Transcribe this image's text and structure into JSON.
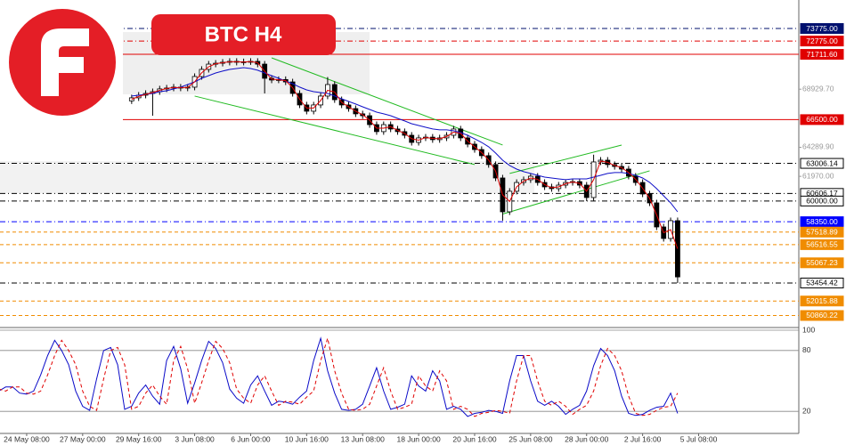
{
  "chart_data": {
    "type": "candlestick",
    "title": "BTC H4",
    "categories": [
      null,
      null,
      null,
      null,
      "24 May 08:00",
      null,
      null,
      null,
      null,
      null,
      null,
      null,
      "27 May 00:00",
      null,
      null,
      null,
      null,
      null,
      null,
      null,
      "29 May 16:00",
      null,
      null,
      null,
      null,
      null,
      null,
      null,
      "3 Jun 08:00",
      null,
      null,
      null,
      null,
      null,
      null,
      null,
      "6 Jun 00:00",
      null,
      null,
      null,
      null,
      null,
      null,
      null,
      "10 Jun 16:00",
      null,
      null,
      null,
      null,
      null,
      null,
      null,
      "13 Jun 08:00",
      null,
      null,
      null,
      null,
      null,
      null,
      null,
      "18 Jun 00:00",
      null,
      null,
      null,
      null,
      null,
      null,
      null,
      "20 Jun 16:00",
      null,
      null,
      null,
      null,
      null,
      null,
      null,
      "25 Jun 08:00",
      null,
      null,
      null,
      null,
      null,
      null,
      null,
      "28 Jun 00:00",
      null,
      null,
      null,
      null,
      null,
      null,
      null,
      "2 Jul 16:00",
      null,
      null,
      null,
      null,
      null,
      null,
      null,
      "5 Jul 08:00"
    ],
    "open": [
      null,
      null,
      null,
      null,
      null,
      null,
      null,
      null,
      null,
      null,
      null,
      null,
      null,
      null,
      null,
      null,
      null,
      null,
      null,
      68000,
      68240,
      68450,
      68590,
      68730,
      68950,
      69020,
      69090,
      69020,
      69090,
      69940,
      70510,
      70930,
      71000,
      71080,
      71150,
      71080,
      71120,
      71150,
      70930,
      69800,
      69660,
      69700,
      69510,
      68590,
      67670,
      67170,
      67670,
      68380,
      69300,
      68090,
      67670,
      67380,
      66960,
      66810,
      66100,
      65540,
      66100,
      65750,
      65540,
      65250,
      64680,
      65040,
      65100,
      64900,
      65040,
      65250,
      65750,
      65040,
      64540,
      64110,
      63620,
      62910,
      61840,
      59140,
      60780,
      61480,
      61700,
      61980,
      61480,
      61130,
      60990,
      61270,
      61480,
      61550,
      61270,
      60280,
      63120,
      63260,
      62910,
      62760,
      62550,
      61980,
      61480,
      60560,
      59850,
      57930,
      57010,
      58430,
      null,
      null,
      null
    ],
    "high": [
      null,
      null,
      null,
      null,
      null,
      null,
      null,
      null,
      null,
      null,
      null,
      null,
      null,
      null,
      null,
      null,
      null,
      null,
      null,
      68490,
      68700,
      68840,
      68980,
      69200,
      69270,
      69340,
      69340,
      69340,
      70190,
      70760,
      71180,
      71250,
      71330,
      71400,
      71400,
      71370,
      71400,
      71400,
      71180,
      70050,
      69950,
      69950,
      69760,
      68840,
      67920,
      67920,
      68630,
      69900,
      69550,
      68340,
      67920,
      67630,
      67210,
      67060,
      66350,
      66350,
      66350,
      66000,
      65790,
      65500,
      65290,
      65350,
      65350,
      65290,
      65500,
      66000,
      66000,
      65290,
      64790,
      64360,
      63870,
      63160,
      62090,
      61030,
      61730,
      61950,
      62230,
      62230,
      61730,
      61380,
      61520,
      61730,
      61800,
      61800,
      61520,
      63700,
      63510,
      63510,
      63160,
      63010,
      62800,
      62230,
      61730,
      60810,
      60100,
      58180,
      58680,
      58680,
      null,
      null,
      null
    ],
    "low": [
      null,
      null,
      null,
      null,
      null,
      null,
      null,
      null,
      null,
      null,
      null,
      null,
      null,
      null,
      null,
      null,
      null,
      null,
      null,
      67750,
      67990,
      68200,
      66810,
      68480,
      68700,
      68770,
      68770,
      68770,
      68840,
      69690,
      70260,
      70680,
      70750,
      70830,
      70830,
      70830,
      70870,
      70680,
      68590,
      69410,
      69410,
      69260,
      68340,
      67420,
      66920,
      66920,
      67420,
      68130,
      67840,
      67420,
      67130,
      66710,
      66560,
      65850,
      65290,
      65290,
      65500,
      65290,
      65000,
      64430,
      64430,
      64790,
      64650,
      64650,
      64790,
      65000,
      64790,
      64290,
      63860,
      63370,
      62660,
      61590,
      58430,
      58890,
      60530,
      61230,
      61450,
      61230,
      60880,
      60740,
      60740,
      61020,
      61230,
      61020,
      59990,
      60030,
      62870,
      62660,
      62510,
      62300,
      61730,
      61230,
      60310,
      59600,
      57680,
      56760,
      56760,
      53450,
      null,
      null,
      null
    ],
    "close": [
      null,
      null,
      null,
      null,
      null,
      null,
      null,
      null,
      null,
      null,
      null,
      null,
      null,
      null,
      null,
      null,
      null,
      null,
      null,
      68240,
      68450,
      68590,
      68730,
      68950,
      69020,
      69090,
      69020,
      69090,
      69940,
      70510,
      70930,
      71000,
      71080,
      71150,
      71080,
      71120,
      71150,
      70930,
      69800,
      69660,
      69700,
      69510,
      68590,
      67670,
      67170,
      67670,
      68380,
      69300,
      68090,
      67670,
      67380,
      66960,
      66810,
      66100,
      65540,
      66100,
      65750,
      65540,
      65250,
      64680,
      65040,
      65100,
      64900,
      65040,
      65250,
      65750,
      65040,
      64540,
      64110,
      63620,
      62910,
      61840,
      59140,
      60780,
      61480,
      61700,
      61980,
      61480,
      61130,
      60990,
      61270,
      61480,
      61550,
      61270,
      60280,
      63120,
      63260,
      62910,
      62760,
      62550,
      61980,
      61480,
      60560,
      59850,
      57930,
      57010,
      58430,
      53940,
      null,
      null,
      null
    ],
    "ma": [
      {
        "color": "#1010c8",
        "values": [
          null,
          null,
          null,
          null,
          null,
          null,
          null,
          null,
          null,
          null,
          null,
          null,
          null,
          null,
          null,
          null,
          null,
          null,
          null,
          68380,
          68450,
          68520,
          68590,
          68730,
          68800,
          68950,
          69090,
          69300,
          69510,
          69800,
          70010,
          70220,
          70370,
          70510,
          70580,
          70650,
          70580,
          70440,
          70220,
          70010,
          69800,
          69580,
          69370,
          69090,
          68870,
          68730,
          68660,
          68590,
          68380,
          68160,
          67950,
          67740,
          67520,
          67310,
          67100,
          66960,
          66810,
          66600,
          66390,
          66170,
          66030,
          65890,
          65750,
          65680,
          65680,
          65610,
          65460,
          65250,
          64970,
          64680,
          64330,
          63830,
          63260,
          62840,
          62550,
          62340,
          62200,
          62050,
          61910,
          61840,
          61770,
          61700,
          61770,
          61770,
          61770,
          61910,
          62050,
          62200,
          62270,
          62270,
          62200,
          62050,
          61840,
          61490,
          60990,
          60420,
          59850,
          59140,
          null,
          null,
          null
        ]
      },
      {
        "color": "#e00000",
        "values": [
          null,
          null,
          null,
          null,
          null,
          null,
          null,
          null,
          null,
          null,
          null,
          null,
          null,
          null,
          null,
          null,
          null,
          null,
          null,
          68120,
          68350,
          68520,
          68660,
          68840,
          68990,
          69060,
          69060,
          69060,
          69520,
          70230,
          70720,
          70970,
          71040,
          71120,
          71120,
          71100,
          71140,
          71040,
          70370,
          69730,
          69680,
          69610,
          69050,
          68130,
          67420,
          67420,
          68030,
          68840,
          68700,
          67880,
          67530,
          67170,
          66890,
          66460,
          65820,
          65820,
          65930,
          65650,
          65400,
          64970,
          64860,
          65070,
          65000,
          64970,
          65150,
          65500,
          65400,
          64790,
          64330,
          63870,
          63270,
          62380,
          60490,
          59960,
          61130,
          61590,
          61840,
          61730,
          61310,
          61060,
          61130,
          61380,
          61520,
          61410,
          60780,
          61700,
          63190,
          63090,
          62840,
          62660,
          62270,
          61730,
          61020,
          60210,
          58890,
          57470,
          57720,
          56190,
          null,
          null,
          null
        ]
      }
    ],
    "trendline_color": "#22bb22",
    "trendlines": [
      {
        "x": [
          39,
          72
        ],
        "y": [
          71430,
          64470
        ]
      },
      {
        "x": [
          28,
          68
        ],
        "y": [
          68380,
          62910
        ]
      },
      {
        "x": [
          73,
          89
        ],
        "y": [
          62200,
          64470
        ]
      },
      {
        "x": [
          72,
          93
        ],
        "y": [
          58960,
          62410
        ]
      }
    ],
    "ylim": [
      49900,
      76050
    ],
    "yticks": [
      {
        "value": 68929.7,
        "label": "68929.70"
      },
      {
        "value": 64289.9,
        "label": "64289.90"
      },
      {
        "value": 61970,
        "label": "61970.00"
      }
    ],
    "levels": [
      {
        "value": 73775,
        "label": "73775.00",
        "color": "#00106e",
        "dash": "dashdot",
        "box": "fill"
      },
      {
        "value": 72775,
        "label": "72775.00",
        "color": "#e00000",
        "dash": "dashdot",
        "box": "fill"
      },
      {
        "value": 71711.6,
        "label": "71711.60",
        "color": "#e00000",
        "dash": "solid",
        "box": "fill"
      },
      {
        "value": 66500,
        "label": "66500.00",
        "color": "#e00000",
        "dash": "solid",
        "box": "fill"
      },
      {
        "value": 63006.14,
        "label": "63006.14",
        "color": "#000000",
        "dash": "dashdot",
        "box": "outline"
      },
      {
        "value": 60606.17,
        "label": "60606.17",
        "color": "#000000",
        "dash": "dashdot",
        "box": "outline"
      },
      {
        "value": 60000,
        "label": "60000.00",
        "color": "#000000",
        "dash": "dashdot",
        "box": "outline"
      },
      {
        "value": 58350,
        "label": "58350.00",
        "color": "#0000ff",
        "dash": "dashdot",
        "box": "fill"
      },
      {
        "value": 57518.89,
        "label": "57518.89",
        "color": "#f08c00",
        "dash": "dashed",
        "box": "fill"
      },
      {
        "value": 56516.55,
        "label": "56516.55",
        "color": "#f08c00",
        "dash": "dashed",
        "box": "fill"
      },
      {
        "value": 55067.23,
        "label": "55067.23",
        "color": "#f08c00",
        "dash": "dashed",
        "box": "fill"
      },
      {
        "value": 53454.42,
        "label": "53454.42",
        "color": "#000000",
        "dash": "dashdot",
        "box": "outline"
      },
      {
        "value": 52015.88,
        "label": "52015.88",
        "color": "#f08c00",
        "dash": "dashed",
        "box": "fill"
      },
      {
        "value": 50860.22,
        "label": "50860.22",
        "color": "#f08c00",
        "dash": "dashed",
        "box": "fill"
      }
    ],
    "oscillator": {
      "ylim": [
        0,
        100
      ],
      "yticks": [
        20,
        80,
        100
      ],
      "series": [
        {
          "color": "#0a0ac8",
          "dash": "solid",
          "values": [
            40,
            44,
            44,
            38,
            37,
            40,
            56,
            75,
            90,
            80,
            66,
            40,
            25,
            21,
            52,
            80,
            83,
            66,
            22,
            25,
            38,
            46,
            35,
            27,
            70,
            84,
            62,
            28,
            48,
            70,
            89,
            82,
            68,
            42,
            33,
            28,
            46,
            55,
            40,
            26,
            30,
            29,
            27,
            34,
            40,
            70,
            92,
            60,
            38,
            22,
            21,
            22,
            27,
            45,
            63,
            40,
            22,
            24,
            27,
            55,
            45,
            40,
            60,
            50,
            22,
            25,
            22,
            15,
            18,
            19,
            21,
            20,
            18,
            50,
            75,
            75,
            50,
            30,
            26,
            30,
            25,
            17,
            22,
            26,
            40,
            65,
            82,
            75,
            60,
            35,
            18,
            16,
            17,
            21,
            24,
            25,
            38,
            18,
            null,
            null,
            null
          ]
        },
        {
          "color": "#e00000",
          "dash": "dashed",
          "values": [
            42,
            40,
            44,
            44,
            38,
            37,
            40,
            56,
            75,
            90,
            80,
            66,
            40,
            25,
            21,
            52,
            80,
            83,
            66,
            22,
            25,
            38,
            46,
            35,
            27,
            70,
            84,
            62,
            28,
            48,
            70,
            89,
            82,
            68,
            42,
            33,
            28,
            46,
            55,
            40,
            26,
            30,
            29,
            27,
            34,
            40,
            70,
            92,
            60,
            38,
            22,
            21,
            22,
            27,
            45,
            63,
            40,
            22,
            24,
            27,
            55,
            45,
            40,
            60,
            50,
            22,
            25,
            22,
            15,
            18,
            19,
            21,
            20,
            18,
            50,
            75,
            75,
            50,
            30,
            26,
            30,
            25,
            17,
            22,
            26,
            40,
            65,
            82,
            75,
            60,
            35,
            18,
            16,
            17,
            21,
            24,
            25,
            38,
            null,
            null,
            null
          ]
        }
      ]
    }
  }
}
